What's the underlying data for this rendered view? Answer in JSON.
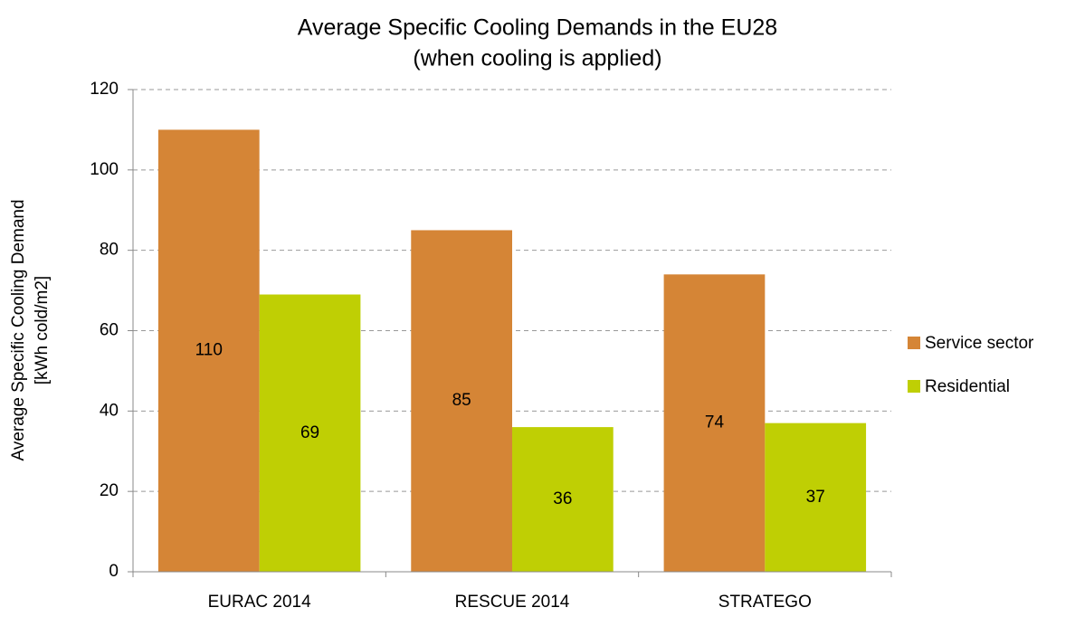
{
  "chart_data": {
    "type": "bar",
    "title": [
      "Average Specific Cooling Demands in the EU28",
      "(when cooling is applied)"
    ],
    "ylabel": [
      "Average Specific Cooling Demand",
      "[kWh cold/m2]"
    ],
    "categories": [
      "EURAC 2014",
      "RESCUE 2014",
      "STRATEGO"
    ],
    "series": [
      {
        "name": "Service sector",
        "color": "#d58536",
        "values": [
          110,
          85,
          74
        ]
      },
      {
        "name": "Residential",
        "color": "#bfcf04",
        "values": [
          69,
          36,
          37
        ]
      }
    ],
    "ylim": [
      0,
      120
    ],
    "yticks": [
      0,
      20,
      40,
      60,
      80,
      100,
      120
    ],
    "grid": true,
    "legend": "right"
  }
}
